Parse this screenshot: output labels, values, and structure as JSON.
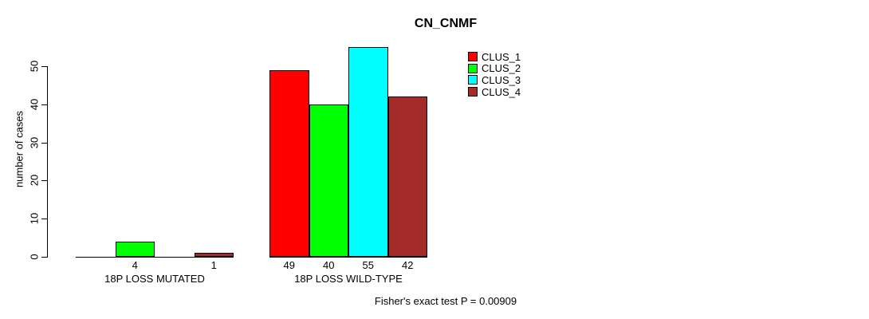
{
  "chart_data": {
    "type": "bar",
    "title": "CN_CNMF",
    "ylabel": "number of cases",
    "xlabel": "",
    "ylim": [
      0,
      57
    ],
    "yticks": [
      0,
      10,
      20,
      30,
      40,
      50
    ],
    "categories": [
      "18P LOSS MUTATED",
      "18P LOSS WILD-TYPE"
    ],
    "series": [
      {
        "name": "CLUS_1",
        "color": "#FF0000",
        "values": [
          0,
          49
        ]
      },
      {
        "name": "CLUS_2",
        "color": "#00FF00",
        "values": [
          4,
          40
        ]
      },
      {
        "name": "CLUS_3",
        "color": "#00FFFF",
        "values": [
          0,
          55
        ]
      },
      {
        "name": "CLUS_4",
        "color": "#A52A2A",
        "values": [
          1,
          42
        ]
      }
    ],
    "bar_value_labels": {
      "18P LOSS MUTATED": [
        "",
        "4",
        "",
        "1"
      ],
      "18P LOSS WILD-TYPE": [
        "49",
        "40",
        "55",
        "42"
      ]
    },
    "grid": false,
    "legend_position": "top-right",
    "annotation": "Fisher's exact test P = 0.00909"
  }
}
